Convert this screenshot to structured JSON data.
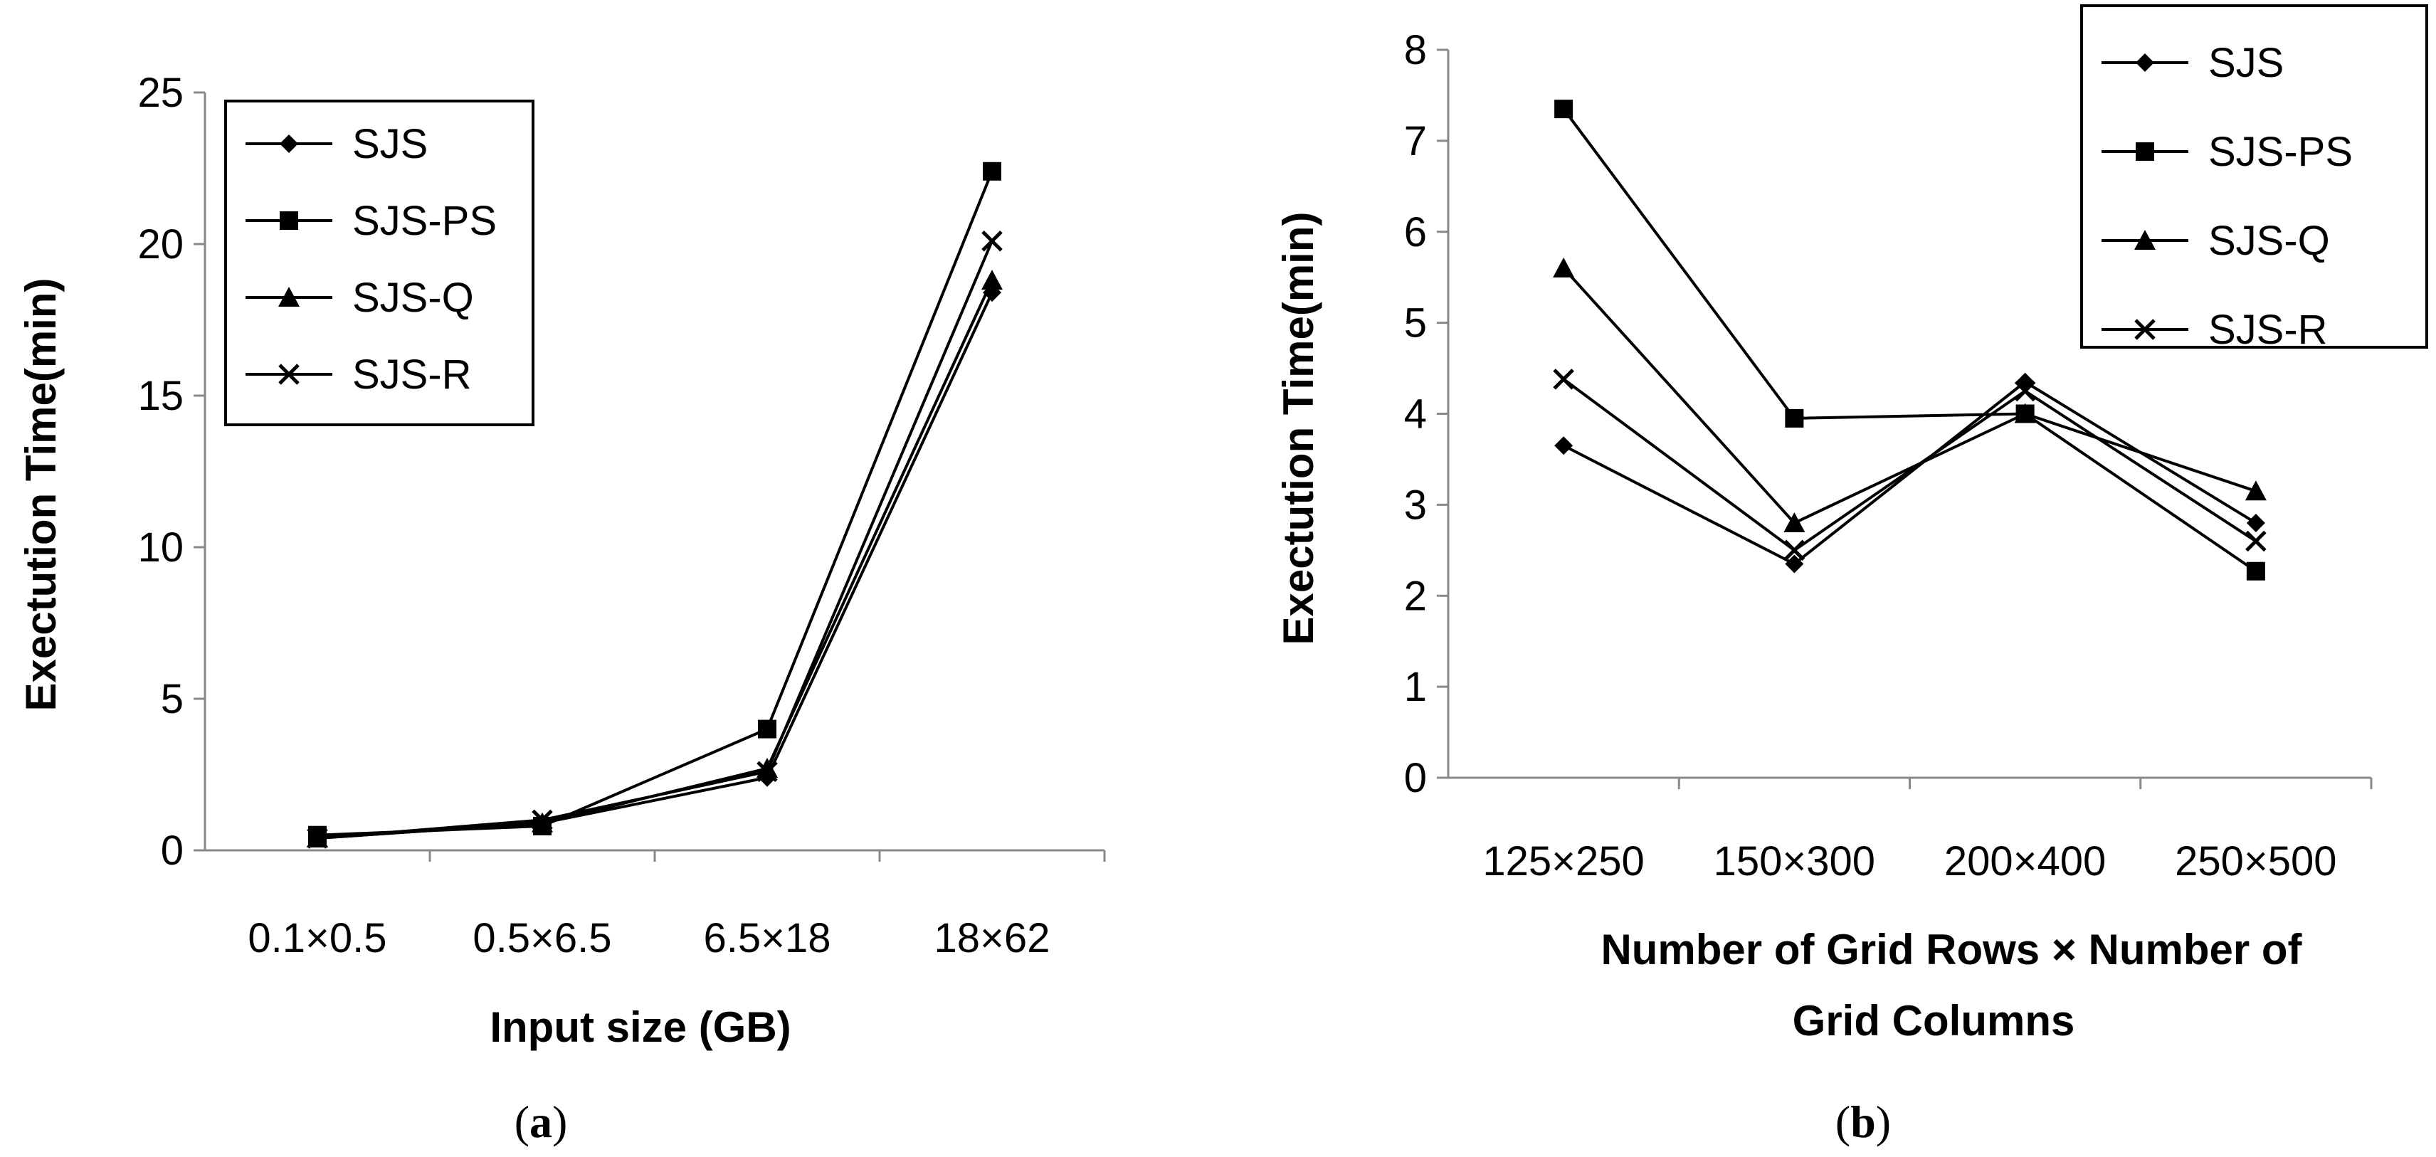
{
  "chart_data": [
    {
      "type": "line",
      "panel_label": "a",
      "title": "",
      "xlabel": "Input size (GB)",
      "ylabel": "Exectution Time(min)",
      "categories": [
        "0.1×0.5",
        "0.5×6.5",
        "6.5×18",
        "18×62"
      ],
      "ylim": [
        0,
        25
      ],
      "yticks": [
        0,
        5,
        10,
        15,
        20,
        25
      ],
      "legend_position": "top-left",
      "series": [
        {
          "name": "SJS",
          "marker": "diamond",
          "values": [
            0.4,
            0.9,
            2.4,
            18.4
          ]
        },
        {
          "name": "SJS-PS",
          "marker": "square",
          "values": [
            0.5,
            0.8,
            4.0,
            22.4
          ]
        },
        {
          "name": "SJS-Q",
          "marker": "triangle",
          "values": [
            0.4,
            0.9,
            2.7,
            18.8
          ]
        },
        {
          "name": "SJS-R",
          "marker": "x",
          "values": [
            0.4,
            1.0,
            2.6,
            20.1
          ]
        }
      ]
    },
    {
      "type": "line",
      "panel_label": "b",
      "title": "",
      "xlabel_line1": "Number of Grid Rows × Number of",
      "xlabel_line2": "Grid Columns",
      "ylabel": "Exectution Time(min)",
      "categories": [
        "125×250",
        "150×300",
        "200×400",
        "250×500"
      ],
      "ylim": [
        0,
        8
      ],
      "yticks": [
        0,
        1,
        2,
        3,
        4,
        5,
        6,
        7,
        8
      ],
      "legend_position": "top-right",
      "series": [
        {
          "name": "SJS",
          "marker": "diamond",
          "values": [
            3.65,
            2.35,
            4.35,
            2.8
          ]
        },
        {
          "name": "SJS-PS",
          "marker": "square",
          "values": [
            7.35,
            3.95,
            4.0,
            2.27
          ]
        },
        {
          "name": "SJS-Q",
          "marker": "triangle",
          "values": [
            5.6,
            2.8,
            4.0,
            3.15
          ]
        },
        {
          "name": "SJS-R",
          "marker": "x",
          "values": [
            4.38,
            2.5,
            4.25,
            2.6
          ]
        }
      ]
    }
  ]
}
